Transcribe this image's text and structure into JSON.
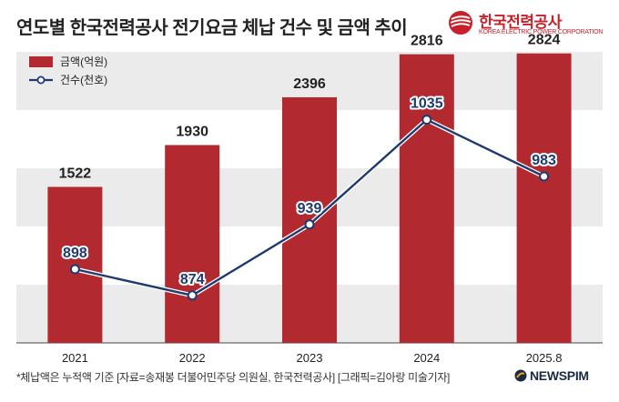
{
  "title": "연도별 한국전력공사 전기요금 체납 건수 및 금액 추이",
  "logo": {
    "name_ko": "한국전력공사",
    "name_en": "KOREA ELECTRIC POWER CORPORATION"
  },
  "chart_data": {
    "type": "bar",
    "categories": [
      "2021",
      "2022",
      "2023",
      "2024",
      "2025.8"
    ],
    "ylim": [
      0,
      3000
    ],
    "series": [
      {
        "name": "금액(억원)",
        "type": "bar",
        "values": [
          1522,
          1930,
          2396,
          2816,
          2824
        ],
        "color": "#b22a2f"
      },
      {
        "name": "건수(천호)",
        "type": "line",
        "values": [
          898,
          874,
          939,
          1035,
          983
        ],
        "color": "#1e3a6e"
      }
    ],
    "legend_position": "top-left",
    "grid": "alternating horizontal bands"
  },
  "footnote": "*체납액은 누적액 기준 [자료=송재봉 더불어민주당 의원실, 한국전력공사] [그래픽=김아랑 미술기자]",
  "watermark": "NEWSPIM"
}
